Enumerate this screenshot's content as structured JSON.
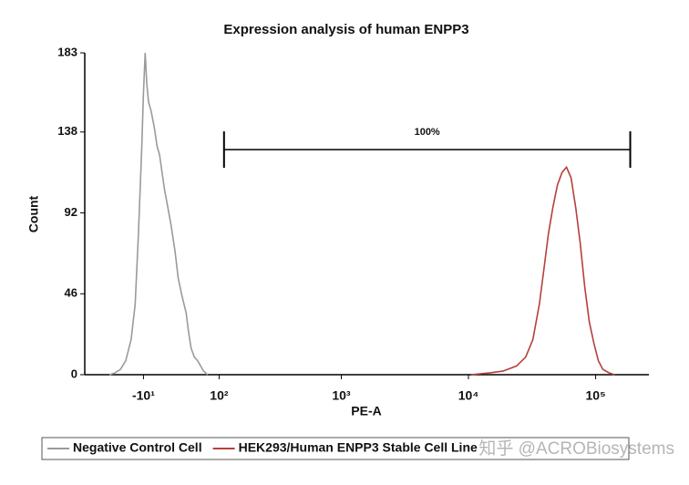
{
  "chart_data": {
    "type": "line",
    "title": "Expression analysis of human ENPP3",
    "xlabel": "PE-A",
    "ylabel": "Count",
    "xscale": "biexponential",
    "xlim": [
      -100,
      262144
    ],
    "ylim": [
      0,
      183
    ],
    "xticks": [
      {
        "value": -10,
        "label": "-10¹"
      },
      {
        "value": 100,
        "label": "10²"
      },
      {
        "value": 1000,
        "label": "10³"
      },
      {
        "value": 10000,
        "label": "10⁴"
      },
      {
        "value": 100000,
        "label": "10⁵"
      }
    ],
    "yticks": [
      0,
      46,
      92,
      138,
      183
    ],
    "series": [
      {
        "name": "Negative Control Cell",
        "color": "#9a9a9a",
        "x": [
          -55,
          -47,
          -39,
          -32,
          -25,
          -20,
          -16,
          -12,
          -10,
          -8,
          -6,
          -4,
          -1,
          3,
          6,
          9,
          12,
          15,
          19,
          23,
          28,
          32,
          37,
          43,
          46,
          50,
          55,
          60,
          65,
          70,
          77
        ],
        "values": [
          0,
          1,
          3,
          8,
          20,
          40,
          80,
          130,
          160,
          183,
          165,
          155,
          150,
          140,
          130,
          125,
          115,
          105,
          95,
          85,
          70,
          55,
          45,
          35,
          25,
          15,
          10,
          8,
          5,
          2,
          0
        ]
      },
      {
        "name": "HEK293/Human ENPP3 Stable Cell Line",
        "color": "#b5403a",
        "x": [
          10500,
          14600,
          18700,
          23900,
          28200,
          32100,
          36100,
          39200,
          42500,
          46100,
          50100,
          54400,
          59000,
          64100,
          69700,
          75600,
          82000,
          89100,
          96800,
          105000,
          114000,
          128000,
          141000
        ],
        "values": [
          0,
          1,
          2,
          5,
          10,
          20,
          40,
          60,
          80,
          95,
          108,
          115,
          118,
          112,
          95,
          75,
          50,
          30,
          18,
          8,
          3,
          1,
          0
        ]
      }
    ],
    "gate": {
      "label": "100%",
      "x": [
        111,
        187000
      ],
      "y": 128
    },
    "watermark": "知乎 @ACROBiosystems"
  }
}
